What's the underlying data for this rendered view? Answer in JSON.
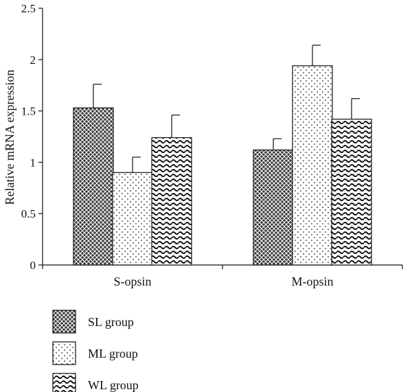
{
  "chart_data": {
    "type": "bar",
    "ylabel": "Relative mRNA expression",
    "xlabel": "",
    "ylim": [
      0,
      2.5
    ],
    "yticks": [
      "0",
      "0.5",
      "1",
      "1.5",
      "2",
      "2.5"
    ],
    "categories": [
      "S-opsin",
      "M-opsin"
    ],
    "series": [
      {
        "name": "SL group",
        "values": [
          1.53,
          1.12
        ],
        "errors": [
          0.23,
          0.11
        ],
        "pattern": "crosshatch"
      },
      {
        "name": "ML group",
        "values": [
          0.9,
          1.94
        ],
        "errors": [
          0.15,
          0.2
        ],
        "pattern": "dots"
      },
      {
        "name": "WL group",
        "values": [
          1.24,
          1.42
        ],
        "errors": [
          0.22,
          0.2
        ],
        "pattern": "waves"
      }
    ],
    "legend_position": "bottom-left",
    "grid": false
  }
}
